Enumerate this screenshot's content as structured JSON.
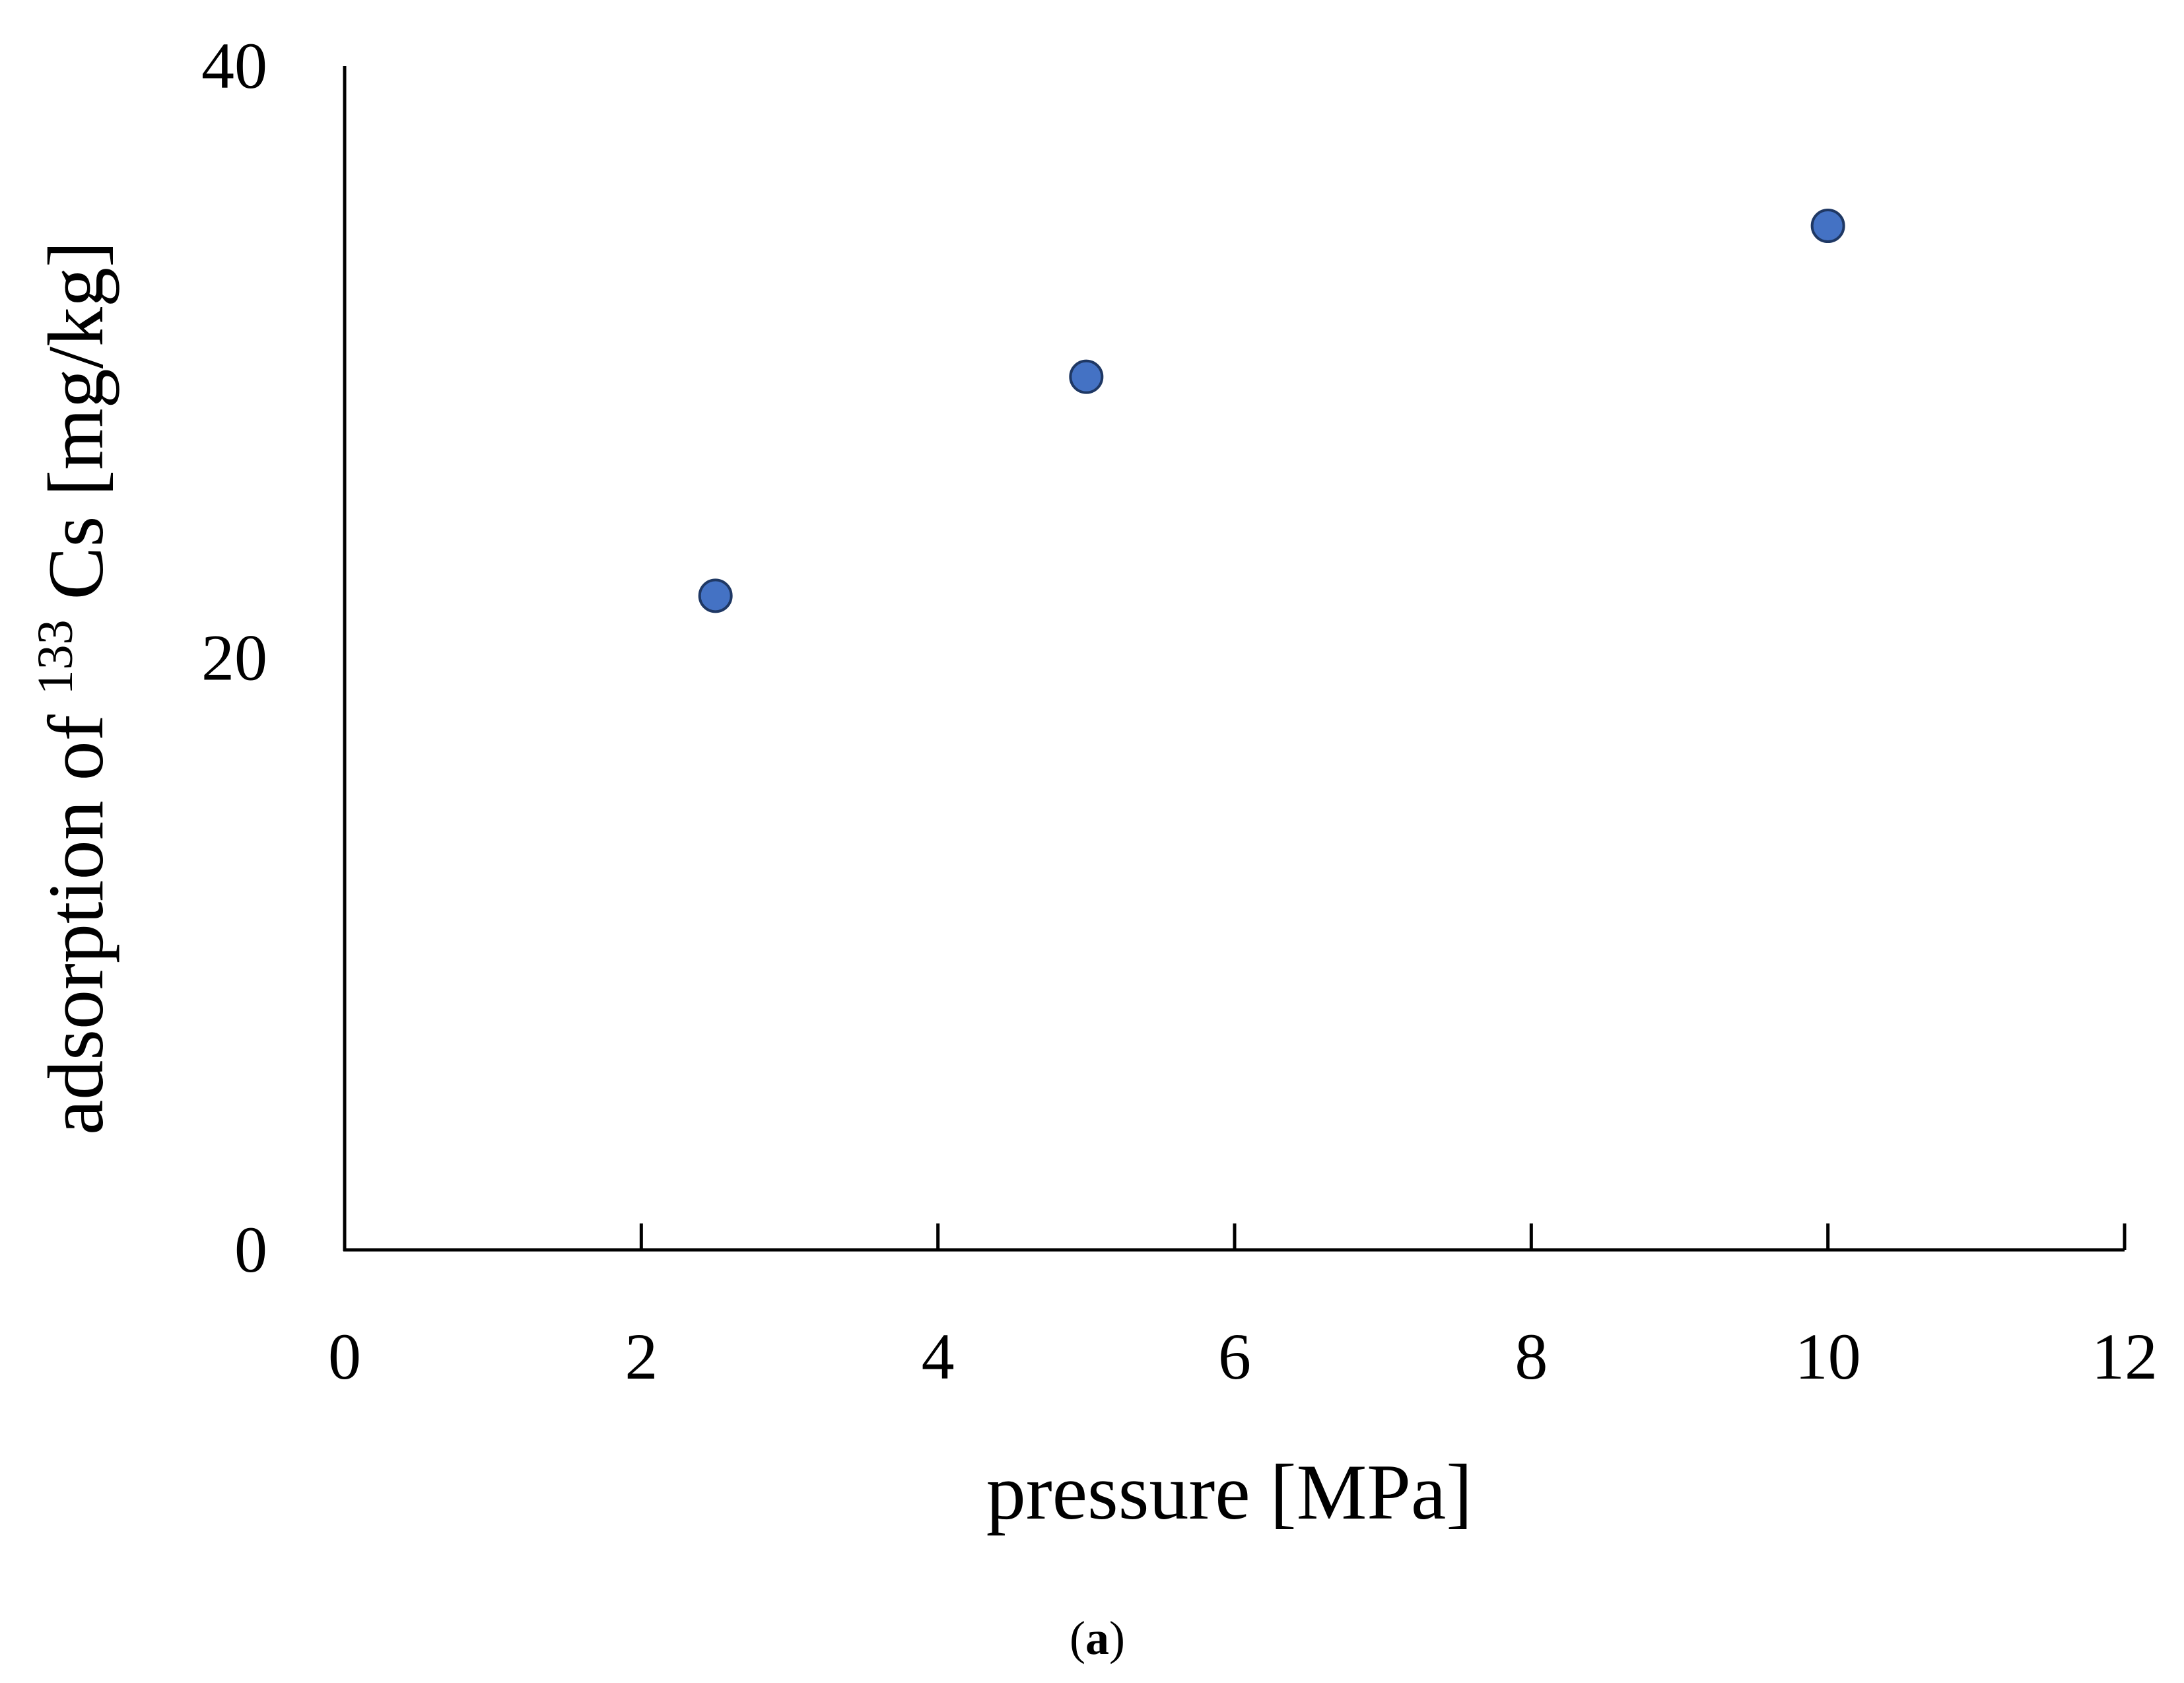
{
  "chart_data": {
    "type": "scatter",
    "xlabel": "pressure [MPa]",
    "ylabel": {
      "prefix": "adsorption of ",
      "superscript": "133",
      "suffix": " Cs [mg/kg]"
    },
    "xlim": [
      0,
      12
    ],
    "ylim": [
      0,
      40
    ],
    "x_ticks": [
      0,
      2,
      4,
      6,
      8,
      10,
      12
    ],
    "y_ticks": [
      0,
      20,
      40
    ],
    "grid": false,
    "series": [
      {
        "color": "#4472c4",
        "edge_color": "#1f3864",
        "points": [
          {
            "x": 2.5,
            "y": 22.1
          },
          {
            "x": 5.0,
            "y": 29.5
          },
          {
            "x": 10.0,
            "y": 34.6
          }
        ]
      }
    ]
  },
  "panel_label": {
    "open": "(",
    "letter": "a",
    "close": ")"
  }
}
